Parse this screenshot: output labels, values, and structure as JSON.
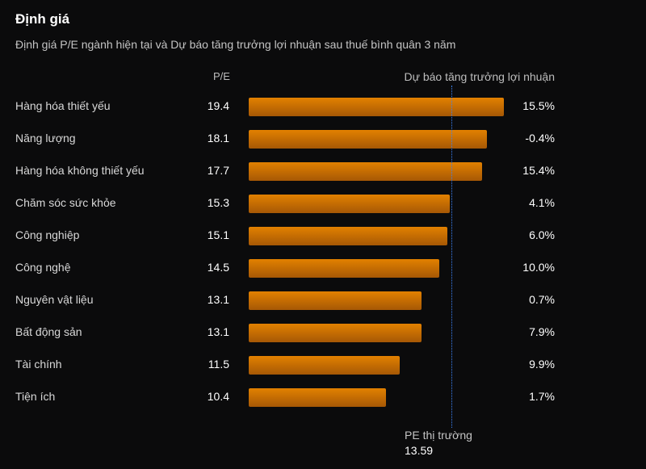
{
  "title": "Định giá",
  "subtitle": "Định giá P/E ngành hiện tại và Dự báo tăng trưởng lợi nhuận sau thuế bình quân 3 năm",
  "chart_data": {
    "type": "bar",
    "orientation": "horizontal",
    "pe_header": "P/E",
    "growth_header": "Dự báo tăng trưởng lợi nhuận",
    "categories": [
      "Hàng hóa thiết yếu",
      "Năng lượng",
      "Hàng hóa không thiết yếu",
      "Chăm sóc sức khỏe",
      "Công nghiệp",
      "Công nghệ",
      "Nguyên vật liệu",
      "Bất động sản",
      "Tài chính",
      "Tiện ích"
    ],
    "pe_values": [
      19.4,
      18.1,
      17.7,
      15.3,
      15.1,
      14.5,
      13.1,
      13.1,
      11.5,
      10.4
    ],
    "pe_labels": [
      "19.4",
      "18.1",
      "17.7",
      "15.3",
      "15.1",
      "14.5",
      "13.1",
      "13.1",
      "11.5",
      "10.4"
    ],
    "growth_labels": [
      "15.5%",
      "-0.4%",
      "15.4%",
      "4.1%",
      "6.0%",
      "10.0%",
      "0.7%",
      "7.9%",
      "9.9%",
      "1.7%"
    ],
    "bar_color": "#e28100",
    "market_pe": {
      "label": "PE thị trường",
      "value": "13.59",
      "line_color": "#3b82f6"
    }
  }
}
